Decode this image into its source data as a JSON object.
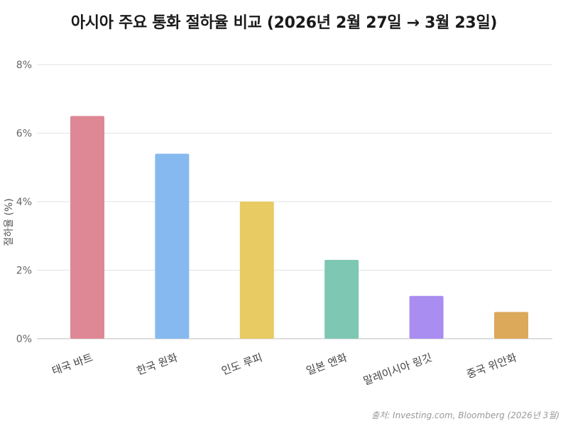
{
  "chart_data": {
    "type": "bar",
    "title": "아시아 주요 통화 절하율 비교 (2026년 2월 27일 → 3월 23일)",
    "xlabel": "",
    "ylabel": "절하율 (%)",
    "ylim": [
      0,
      8
    ],
    "yticks": [
      0,
      2,
      4,
      6,
      8
    ],
    "ytick_labels": [
      "0%",
      "2%",
      "4%",
      "6%",
      "8%"
    ],
    "categories": [
      "태국 바트",
      "한국 원화",
      "인도 루피",
      "일본 엔화",
      "말레이시아 링깃",
      "중국 위안화"
    ],
    "values": [
      6.5,
      5.4,
      4.0,
      2.3,
      1.25,
      0.78
    ],
    "colors": [
      "#de8795",
      "#85b9ef",
      "#e8cb62",
      "#7ec7b2",
      "#a98df0",
      "#dca85a"
    ],
    "grid": true,
    "legend": "none"
  },
  "source": "출처: Investing.com, Bloomberg (2026년 3월)"
}
